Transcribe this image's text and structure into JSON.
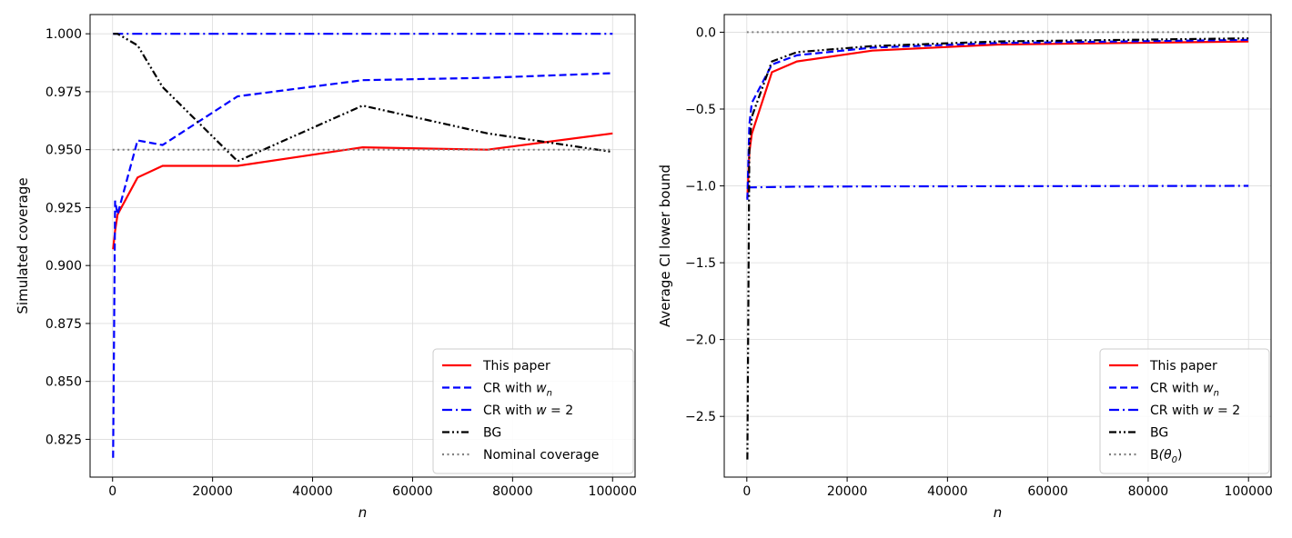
{
  "chart_data": [
    {
      "type": "line",
      "xlabel": "n",
      "ylabel": "Simulated coverage",
      "xlim": [
        -4500,
        104500
      ],
      "ylim": [
        0.8087,
        1.0083
      ],
      "xticks": [
        0,
        20000,
        40000,
        60000,
        80000,
        100000
      ],
      "yticks": [
        0.825,
        0.85,
        0.875,
        0.9,
        0.925,
        0.95,
        0.975,
        1.0
      ],
      "ytick_labels": [
        "0.825",
        "0.850",
        "0.875",
        "0.900",
        "0.925",
        "0.950",
        "0.975",
        "1.000"
      ],
      "grid": true,
      "legend_position": "bottom-right",
      "series": [
        {
          "name": "This paper",
          "color": "#ff0000",
          "style": "solid",
          "x": [
            100,
            500,
            1000,
            5000,
            10000,
            25000,
            50000,
            75000,
            100000
          ],
          "y": [
            0.907,
            0.915,
            0.922,
            0.938,
            0.943,
            0.943,
            0.951,
            0.95,
            0.957
          ]
        },
        {
          "name": "CR with w_n",
          "label_main": "CR with ",
          "label_math": "w",
          "label_sub": "n",
          "color": "#0000ff",
          "style": "dashed",
          "x": [
            100,
            500,
            1000,
            5000,
            10000,
            25000,
            50000,
            75000,
            100000
          ],
          "y": [
            0.817,
            0.928,
            0.922,
            0.954,
            0.952,
            0.973,
            0.98,
            0.981,
            0.983
          ]
        },
        {
          "name": "CR with w = 2",
          "label_main": "CR with ",
          "label_math": "w",
          "label_eq": " = 2",
          "color": "#0000ff",
          "style": "dashdot",
          "x": [
            100,
            100000
          ],
          "y": [
            1.0,
            1.0
          ]
        },
        {
          "name": "BG",
          "color": "#000000",
          "style": "dashdotdot",
          "x": [
            100,
            500,
            1000,
            5000,
            10000,
            25000,
            50000,
            75000,
            100000
          ],
          "y": [
            1.0,
            1.0,
            1.0,
            0.995,
            0.977,
            0.945,
            0.969,
            0.957,
            0.949
          ]
        },
        {
          "name": "Nominal coverage",
          "color": "#808080",
          "style": "dotted",
          "x": [
            0,
            100000
          ],
          "y": [
            0.95,
            0.95
          ]
        }
      ]
    },
    {
      "type": "line",
      "xlabel": "n",
      "ylabel": "Average CI lower bound",
      "xlim": [
        -4500,
        104500
      ],
      "ylim": [
        -2.895,
        0.115
      ],
      "xticks": [
        0,
        20000,
        40000,
        60000,
        80000,
        100000
      ],
      "yticks": [
        -2.5,
        -2.0,
        -1.5,
        -1.0,
        -0.5,
        0.0
      ],
      "ytick_labels": [
        "−2.5",
        "−2.0",
        "−1.5",
        "−1.0",
        "−0.5",
        "0.0"
      ],
      "grid": true,
      "legend_position": "bottom-right",
      "series": [
        {
          "name": "This paper",
          "color": "#ff0000",
          "style": "solid",
          "x": [
            100,
            500,
            1000,
            5000,
            10000,
            25000,
            50000,
            75000,
            100000
          ],
          "y": [
            -1.08,
            -0.78,
            -0.66,
            -0.26,
            -0.19,
            -0.12,
            -0.08,
            -0.07,
            -0.06
          ]
        },
        {
          "name": "CR with w_n",
          "label_main": "CR with ",
          "label_math": "w",
          "label_sub": "n",
          "color": "#0000ff",
          "style": "dashed",
          "x": [
            100,
            500,
            1000,
            5000,
            10000,
            25000,
            50000,
            75000,
            100000
          ],
          "y": [
            -1.09,
            -0.6,
            -0.46,
            -0.21,
            -0.15,
            -0.1,
            -0.07,
            -0.06,
            -0.05
          ]
        },
        {
          "name": "CR with w = 2",
          "label_main": "CR with ",
          "label_math": "w",
          "label_eq": " = 2",
          "color": "#0000ff",
          "style": "dashdot",
          "x": [
            100,
            500,
            1000,
            10000,
            25000,
            50000,
            75000,
            100000
          ],
          "y": [
            -1.02,
            -1.01,
            -1.01,
            -1.005,
            -1.003,
            -1.002,
            -1.001,
            -1.0
          ]
        },
        {
          "name": "BG",
          "color": "#000000",
          "style": "dashdotdot",
          "x": [
            100,
            500,
            1000,
            5000,
            10000,
            25000,
            50000,
            75000,
            100000
          ],
          "y": [
            -2.78,
            -0.75,
            -0.55,
            -0.19,
            -0.13,
            -0.09,
            -0.06,
            -0.05,
            -0.04
          ]
        },
        {
          "name": "B(θ0)",
          "label_main": "B",
          "label_math": "",
          "label_paren": "(θ",
          "label_sub": "0",
          "label_close": ")",
          "color": "#808080",
          "style": "dotted",
          "x": [
            0,
            100000
          ],
          "y": [
            0.0,
            0.0
          ]
        }
      ]
    }
  ]
}
